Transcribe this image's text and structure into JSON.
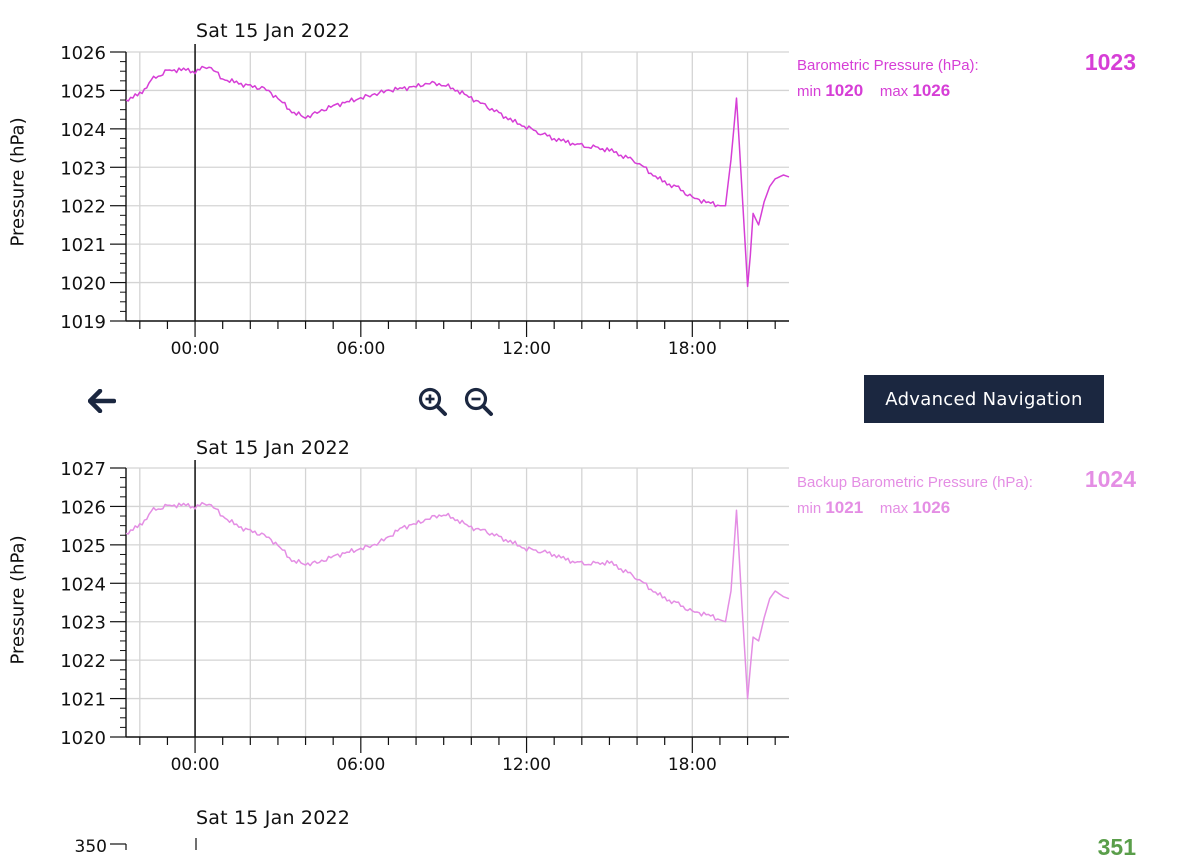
{
  "navigation": {
    "back_icon": "arrow-left-icon",
    "zoom_in_icon": "zoom-in-icon",
    "zoom_out_icon": "zoom-out-icon",
    "advanced_label": "Advanced Navigation"
  },
  "charts": [
    {
      "date": "Sat 15 Jan 2022",
      "ylabel": "Pressure (hPa)",
      "legend": {
        "name": "Barometric Pressure (hPa):",
        "current": "1023",
        "min_label": "min",
        "min": "1020",
        "max_label": "max",
        "max": "1026"
      },
      "color": "#d63ed6"
    },
    {
      "date": "Sat 15 Jan 2022",
      "ylabel": "Pressure (hPa)",
      "legend": {
        "name": "Backup Barometric Pressure (hPa):",
        "current": "1024",
        "min_label": "min",
        "min": "1021",
        "max_label": "max",
        "max": "1026"
      },
      "color": "#e48ee4"
    },
    {
      "date": "Sat 15 Jan 2022",
      "ytick_top": "350",
      "current": "351",
      "color": "#5a9e4a"
    }
  ],
  "chart_data": [
    {
      "type": "line",
      "title": "Sat 15 Jan 2022",
      "ylabel": "Pressure (hPa)",
      "ylim": [
        1019,
        1026
      ],
      "yticks": [
        1019,
        1020,
        1021,
        1022,
        1023,
        1024,
        1025,
        1026
      ],
      "xlim": [
        -2.5,
        21.5
      ],
      "xticks": [
        "00:00",
        "06:00",
        "12:00",
        "18:00"
      ],
      "grid": true,
      "series": [
        {
          "name": "Barometric Pressure (hPa)",
          "color": "#d63ed6",
          "x": [
            -2.5,
            -2,
            -1.5,
            -1,
            -0.5,
            0,
            0.5,
            1,
            1.5,
            2,
            2.5,
            3,
            3.5,
            4,
            4.5,
            5,
            5.5,
            6,
            6.5,
            7,
            7.5,
            8,
            8.5,
            9,
            9.5,
            10,
            10.5,
            11,
            11.5,
            12,
            12.5,
            13,
            13.5,
            14,
            14.5,
            15,
            15.5,
            16,
            16.5,
            17,
            17.5,
            18,
            18.5,
            19,
            19.2,
            19.4,
            19.6,
            19.8,
            20,
            20.1,
            20.2,
            20.4,
            20.6,
            20.8,
            21,
            21.3,
            21.5
          ],
          "y": [
            1024.75,
            1024.9,
            1025.3,
            1025.5,
            1025.55,
            1025.5,
            1025.65,
            1025.3,
            1025.2,
            1025.1,
            1025.05,
            1024.8,
            1024.45,
            1024.3,
            1024.45,
            1024.6,
            1024.7,
            1024.8,
            1024.9,
            1025.0,
            1025.05,
            1025.1,
            1025.2,
            1025.15,
            1025.0,
            1024.8,
            1024.6,
            1024.4,
            1024.2,
            1024.05,
            1023.9,
            1023.75,
            1023.65,
            1023.55,
            1023.5,
            1023.45,
            1023.3,
            1023.15,
            1022.85,
            1022.6,
            1022.45,
            1022.2,
            1022.1,
            1022.0,
            1022.0,
            1023.2,
            1024.8,
            1022.4,
            1019.9,
            1020.7,
            1021.8,
            1021.5,
            1022.1,
            1022.5,
            1022.7,
            1022.8,
            1022.75
          ]
        }
      ]
    },
    {
      "type": "line",
      "title": "Sat 15 Jan 2022",
      "ylabel": "Pressure (hPa)",
      "ylim": [
        1020,
        1027
      ],
      "yticks": [
        1020,
        1021,
        1022,
        1023,
        1024,
        1025,
        1026,
        1027
      ],
      "xlim": [
        -2.5,
        21.5
      ],
      "xticks": [
        "00:00",
        "06:00",
        "12:00",
        "18:00"
      ],
      "grid": true,
      "series": [
        {
          "name": "Backup Barometric Pressure (hPa)",
          "color": "#e48ee4",
          "x": [
            -2.5,
            -2,
            -1.5,
            -1,
            -0.5,
            0,
            0.5,
            1,
            1.5,
            2,
            2.5,
            3,
            3.5,
            4,
            4.5,
            5,
            5.5,
            6,
            6.5,
            7,
            7.5,
            8,
            8.5,
            9,
            9.5,
            10,
            10.5,
            11,
            11.5,
            12,
            12.5,
            13,
            13.5,
            14,
            14.5,
            15,
            15.5,
            16,
            16.5,
            17,
            17.5,
            18,
            18.5,
            19,
            19.2,
            19.4,
            19.6,
            19.8,
            20,
            20.1,
            20.2,
            20.4,
            20.6,
            20.8,
            21,
            21.3,
            21.5
          ],
          "y": [
            1025.3,
            1025.5,
            1025.9,
            1026.0,
            1026.05,
            1026.0,
            1026.1,
            1025.75,
            1025.5,
            1025.35,
            1025.25,
            1025.0,
            1024.6,
            1024.5,
            1024.55,
            1024.7,
            1024.8,
            1024.9,
            1025.0,
            1025.2,
            1025.45,
            1025.55,
            1025.7,
            1025.8,
            1025.65,
            1025.45,
            1025.35,
            1025.2,
            1025.05,
            1024.9,
            1024.85,
            1024.75,
            1024.6,
            1024.5,
            1024.5,
            1024.55,
            1024.35,
            1024.15,
            1023.85,
            1023.6,
            1023.45,
            1023.25,
            1023.2,
            1023.05,
            1023.0,
            1023.8,
            1025.9,
            1023.4,
            1021.0,
            1021.8,
            1022.6,
            1022.5,
            1023.1,
            1023.6,
            1023.8,
            1023.65,
            1023.6
          ]
        }
      ]
    }
  ]
}
